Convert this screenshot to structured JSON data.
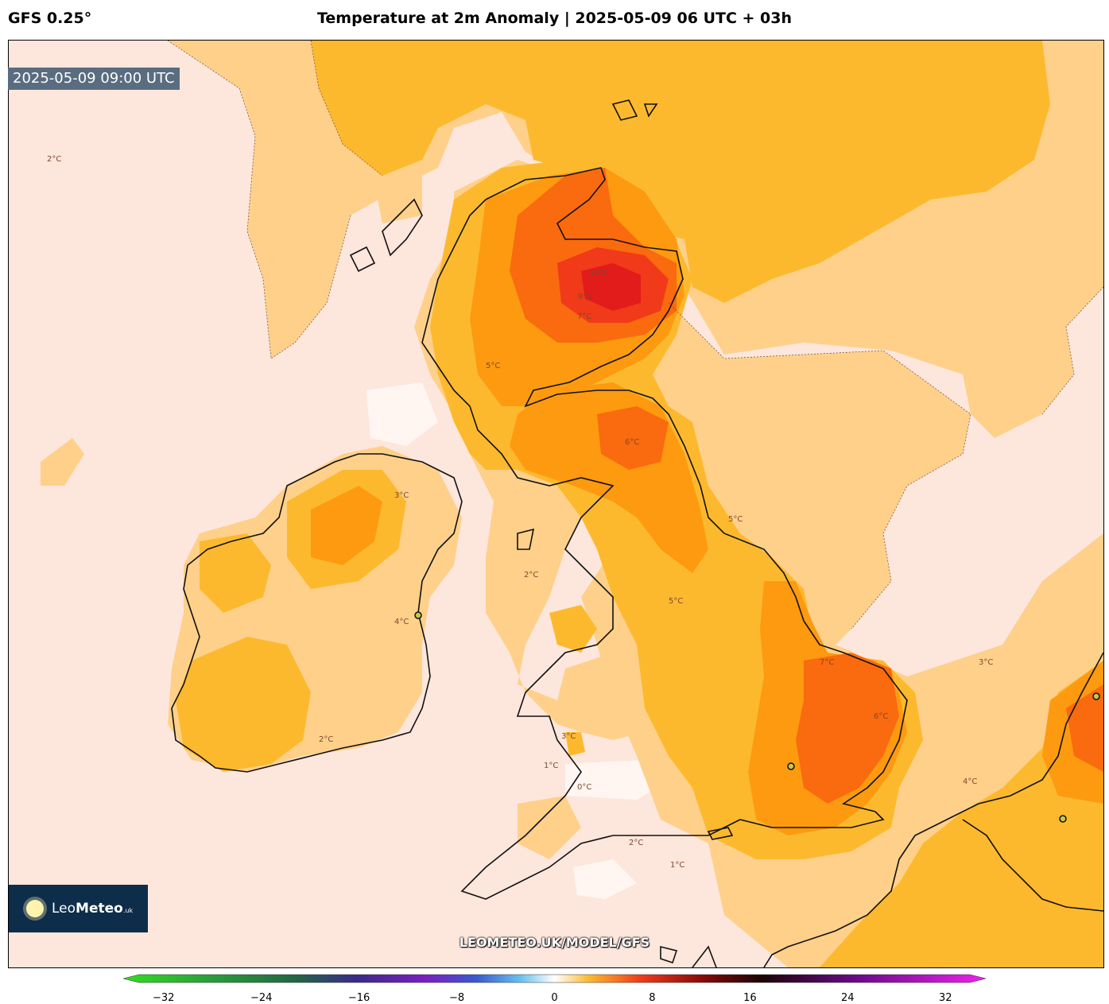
{
  "header": {
    "model": "GFS 0.25°",
    "title": "Temperature at 2m Anomaly | 2025-05-09 06 UTC + 03h"
  },
  "valid_time": "2025-05-09 09:00 UTC",
  "logo": {
    "name_light": "Leo",
    "name_bold": "Meteo",
    "suffix": ".uk"
  },
  "watermark": "LEOMETEO.UK/MODEL/GFS",
  "colorbar": {
    "ticks": [
      "−32",
      "−24",
      "−16",
      "−8",
      "0",
      "8",
      "16",
      "24",
      "32"
    ],
    "range": [
      -34,
      34
    ]
  },
  "contour_labels": [
    "10°C",
    "9°C",
    "7°C",
    "7°C",
    "6°C",
    "6°C",
    "5°C",
    "5°C",
    "5°C",
    "4°C",
    "4°C",
    "3°C",
    "3°C",
    "3°C",
    "2°C",
    "2°C",
    "2°C",
    "2°C",
    "1°C",
    "1°C",
    "0°C"
  ],
  "colors": {
    "anom_0_2": "#fde6dc",
    "anom_2_3": "#fed08a",
    "anom_3_5": "#fdb92e",
    "anom_5_6": "#fd9a10",
    "anom_6_8": "#fa6a0e",
    "anom_8_10": "#f03a1a",
    "anom_10": "#e21b1b",
    "near_zero": "#fff6f2"
  }
}
